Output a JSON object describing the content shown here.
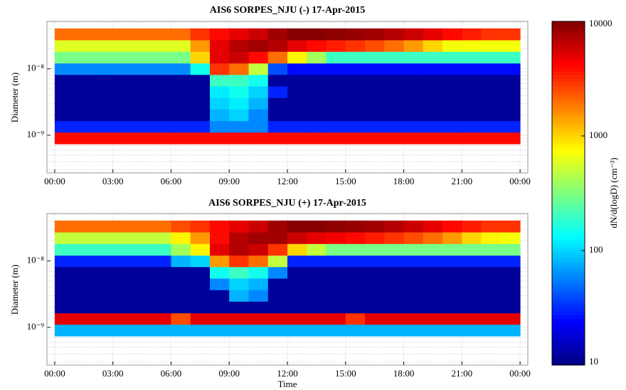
{
  "chart_data": [
    {
      "type": "heatmap",
      "title": "AIS6 SORPES_NJU (-) 17-Apr-2015",
      "ylabel": "Diameter (m)",
      "xlim": [
        -0.4,
        24.4
      ],
      "xticks": [
        {
          "value": 0,
          "label": "00:00"
        },
        {
          "value": 3,
          "label": "03:00"
        },
        {
          "value": 6,
          "label": "06:00"
        },
        {
          "value": 9,
          "label": "09:00"
        },
        {
          "value": 12,
          "label": "12:00"
        },
        {
          "value": 15,
          "label": "15:00"
        },
        {
          "value": 18,
          "label": "18:00"
        },
        {
          "value": 21,
          "label": "21:00"
        },
        {
          "value": 24,
          "label": "00:00"
        }
      ],
      "ylim": [
        2.7e-10,
        5.2e-08
      ],
      "log_y": true,
      "yticks": [
        {
          "value": 1e-09,
          "label": "10⁻⁹"
        },
        {
          "value": 1e-08,
          "label": "10⁻⁸"
        }
      ],
      "grid": true,
      "minor_grid": true,
      "x_edges": [
        0,
        1,
        2,
        3,
        4,
        5,
        6,
        7,
        8,
        9,
        10,
        11,
        12,
        13,
        14,
        15,
        16,
        17,
        18,
        19,
        20,
        21,
        22,
        23,
        24
      ],
      "y_edges": [
        7.4e-10,
        1.11e-09,
        1.65e-09,
        2.47e-09,
        3.68e-09,
        5.5e-09,
        8.2e-09,
        1.22e-08,
        1.83e-08,
        2.73e-08,
        4.07e-08
      ],
      "z": [
        [
          4000,
          4000,
          4000,
          4000,
          4000,
          4000,
          4000,
          4000,
          4000,
          4000,
          4000,
          4000,
          4000,
          4000,
          4000,
          4000,
          4000,
          4000,
          4000,
          4000,
          4000,
          4000,
          4000,
          4000
        ],
        [
          30,
          30,
          30,
          30,
          30,
          30,
          30,
          30,
          60,
          60,
          60,
          30,
          30,
          30,
          30,
          30,
          30,
          30,
          30,
          30,
          30,
          30,
          30,
          30
        ],
        [
          12,
          12,
          12,
          12,
          12,
          12,
          12,
          12,
          80,
          100,
          60,
          12,
          12,
          12,
          12,
          12,
          12,
          12,
          12,
          12,
          12,
          12,
          12,
          12
        ],
        [
          12,
          12,
          12,
          12,
          12,
          12,
          12,
          12,
          100,
          120,
          80,
          12,
          12,
          12,
          12,
          12,
          12,
          12,
          12,
          12,
          12,
          12,
          12,
          12
        ],
        [
          12,
          12,
          12,
          12,
          12,
          12,
          12,
          12,
          120,
          150,
          100,
          30,
          12,
          12,
          12,
          12,
          12,
          12,
          12,
          12,
          12,
          12,
          12,
          12
        ],
        [
          12,
          12,
          12,
          12,
          12,
          12,
          12,
          12,
          200,
          200,
          150,
          12,
          12,
          12,
          12,
          12,
          12,
          12,
          12,
          12,
          12,
          12,
          12,
          12
        ],
        [
          60,
          60,
          60,
          60,
          60,
          60,
          60,
          150,
          3000,
          2000,
          500,
          40,
          25,
          25,
          25,
          25,
          25,
          25,
          25,
          25,
          25,
          25,
          25,
          25
        ],
        [
          300,
          300,
          300,
          300,
          300,
          300,
          300,
          1000,
          5000,
          6000,
          4000,
          2000,
          800,
          400,
          200,
          200,
          200,
          200,
          200,
          200,
          200,
          200,
          200,
          200
        ],
        [
          600,
          600,
          600,
          600,
          600,
          600,
          600,
          1500,
          5000,
          7000,
          8000,
          7000,
          5000,
          4000,
          3500,
          3000,
          2500,
          2000,
          1500,
          1000,
          700,
          700,
          700,
          700
        ],
        [
          2000,
          2000,
          2000,
          2000,
          2000,
          2000,
          2000,
          3000,
          4000,
          5000,
          6000,
          8000,
          9500,
          9500,
          9000,
          8500,
          8000,
          7000,
          6000,
          5000,
          4000,
          3500,
          3000,
          3000
        ]
      ]
    },
    {
      "type": "heatmap",
      "title": "AIS6 SORPES_NJU (+) 17-Apr-2015",
      "ylabel": "Diameter (m)",
      "xlabel": "Time",
      "xlim": [
        -0.4,
        24.4
      ],
      "xticks": [
        {
          "value": 0,
          "label": "00:00"
        },
        {
          "value": 3,
          "label": "03:00"
        },
        {
          "value": 6,
          "label": "06:00"
        },
        {
          "value": 9,
          "label": "09:00"
        },
        {
          "value": 12,
          "label": "12:00"
        },
        {
          "value": 15,
          "label": "15:00"
        },
        {
          "value": 18,
          "label": "18:00"
        },
        {
          "value": 21,
          "label": "21:00"
        },
        {
          "value": 24,
          "label": "00:00"
        }
      ],
      "ylim": [
        2.7e-10,
        5.2e-08
      ],
      "log_y": true,
      "yticks": [
        {
          "value": 1e-09,
          "label": "10⁻⁹"
        },
        {
          "value": 1e-08,
          "label": "10⁻⁸"
        }
      ],
      "grid": true,
      "minor_grid": true,
      "x_edges": [
        0,
        1,
        2,
        3,
        4,
        5,
        6,
        7,
        8,
        9,
        10,
        11,
        12,
        13,
        14,
        15,
        16,
        17,
        18,
        19,
        20,
        21,
        22,
        23,
        24
      ],
      "y_edges": [
        7.4e-10,
        1.11e-09,
        1.65e-09,
        2.47e-09,
        3.68e-09,
        5.5e-09,
        8.2e-09,
        1.22e-08,
        1.83e-08,
        2.73e-08,
        4.07e-08
      ],
      "z": [
        [
          80,
          80,
          80,
          80,
          80,
          80,
          80,
          80,
          80,
          80,
          80,
          80,
          80,
          80,
          80,
          80,
          80,
          80,
          80,
          80,
          80,
          80,
          80,
          80
        ],
        [
          5000,
          5000,
          5000,
          5000,
          5000,
          5000,
          2500,
          5000,
          5000,
          5000,
          5000,
          5000,
          5000,
          5000,
          5000,
          3000,
          5000,
          5000,
          5000,
          5000,
          5000,
          5000,
          5000,
          5000
        ],
        [
          12,
          12,
          12,
          12,
          12,
          12,
          12,
          12,
          12,
          12,
          12,
          12,
          12,
          12,
          12,
          12,
          12,
          12,
          12,
          12,
          12,
          12,
          12,
          12
        ],
        [
          12,
          12,
          12,
          12,
          12,
          12,
          12,
          12,
          12,
          80,
          60,
          12,
          12,
          12,
          12,
          12,
          12,
          12,
          12,
          12,
          12,
          12,
          12,
          12
        ],
        [
          12,
          12,
          12,
          12,
          12,
          12,
          12,
          12,
          60,
          100,
          80,
          12,
          12,
          12,
          12,
          12,
          12,
          12,
          12,
          12,
          12,
          12,
          12,
          12
        ],
        [
          12,
          12,
          12,
          12,
          12,
          12,
          12,
          12,
          150,
          200,
          150,
          60,
          12,
          12,
          12,
          12,
          12,
          12,
          12,
          12,
          12,
          12,
          12,
          12
        ],
        [
          30,
          30,
          30,
          30,
          30,
          30,
          80,
          100,
          1500,
          3000,
          2000,
          500,
          30,
          30,
          30,
          30,
          30,
          30,
          30,
          30,
          30,
          30,
          30,
          30
        ],
        [
          200,
          200,
          200,
          200,
          200,
          200,
          400,
          800,
          5000,
          7000,
          6000,
          3000,
          1000,
          500,
          300,
          300,
          300,
          300,
          300,
          300,
          300,
          300,
          300,
          300
        ],
        [
          500,
          500,
          500,
          500,
          500,
          500,
          800,
          1500,
          4000,
          7000,
          8000,
          8000,
          6000,
          5000,
          4500,
          4000,
          3500,
          3000,
          2500,
          2000,
          1500,
          1000,
          800,
          700
        ],
        [
          2000,
          2000,
          2000,
          2000,
          2000,
          2000,
          2500,
          3000,
          4000,
          5000,
          6000,
          8000,
          9500,
          9500,
          9000,
          8500,
          8000,
          7000,
          6000,
          5000,
          4000,
          3500,
          3000,
          3000
        ]
      ]
    }
  ],
  "colorbar": {
    "label": "dN/d(logD) (cm⁻³)",
    "lim": [
      10,
      10000
    ],
    "log": true,
    "ticks": [
      10,
      100,
      1000,
      10000
    ],
    "colormap": "jet"
  }
}
